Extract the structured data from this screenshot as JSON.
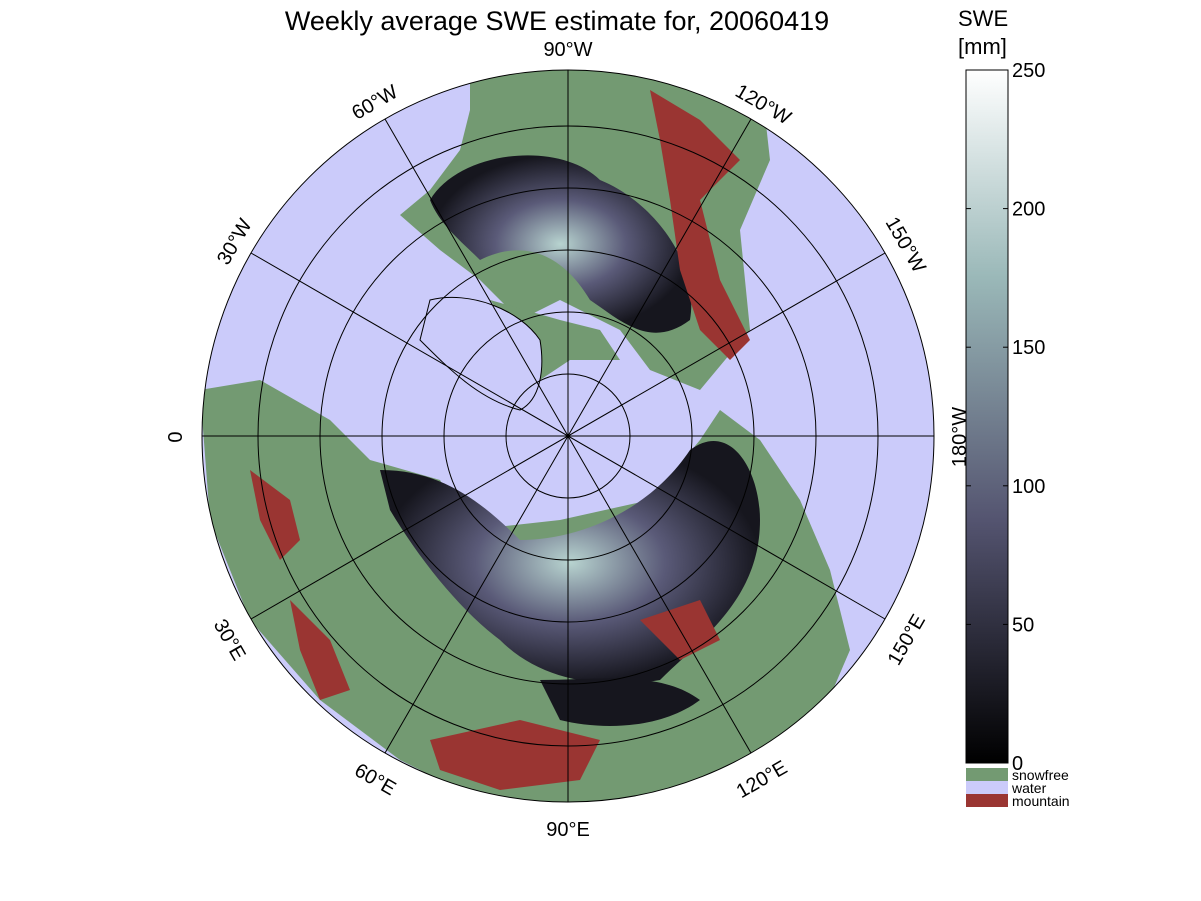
{
  "title": "Weekly average SWE estimate for, 20060419",
  "longitude_labels": [
    "90°W",
    "60°W",
    "120°W",
    "30°W",
    "150°W",
    "0",
    "180°W",
    "30°E",
    "150°E",
    "60°E",
    "120°E",
    "90°E"
  ],
  "colorbar": {
    "label": [
      "SWE",
      "[mm]"
    ],
    "lim": [
      0,
      250
    ],
    "ticks": [
      0,
      50,
      100,
      150,
      200,
      250
    ]
  },
  "legend": [
    {
      "name": "snowfree",
      "color": "#739a72"
    },
    {
      "name": "water",
      "color": "#cbcbfa"
    },
    {
      "name": "mountain",
      "color": "#9a3532"
    }
  ]
}
